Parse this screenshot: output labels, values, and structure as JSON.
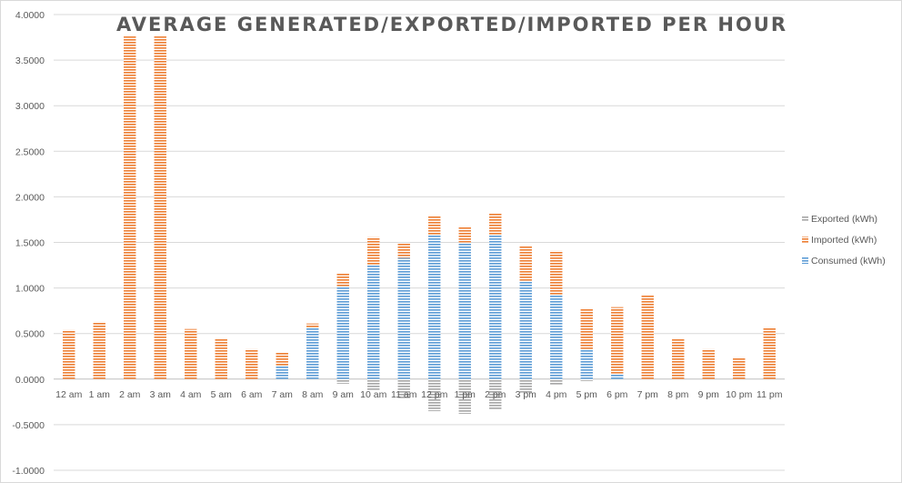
{
  "chart_data": {
    "type": "bar",
    "stacked": true,
    "title": "AVERAGE GENERATED/EXPORTED/IMPORTED PER HOUR",
    "xlabel": "",
    "ylabel": "",
    "ylim": [
      -1.0,
      4.0
    ],
    "ytick_step": 0.5,
    "ytick_decimals": 4,
    "grid": true,
    "legend_position": "right",
    "categories": [
      "12 am",
      "1 am",
      "2 am",
      "3 am",
      "4 am",
      "5 am",
      "6 am",
      "7 am",
      "8 am",
      "9 am",
      "10 am",
      "11 am",
      "12 pm",
      "1 pm",
      "2 pm",
      "3 pm",
      "4 pm",
      "5 pm",
      "6 pm",
      "7 pm",
      "8 pm",
      "9 pm",
      "10 pm",
      "11 pm"
    ],
    "series": [
      {
        "name": "Exported (kWh)",
        "color": "#a5a5a5",
        "values": [
          0,
          0,
          0,
          0,
          0,
          0,
          0,
          0,
          0,
          -0.05,
          -0.12,
          -0.22,
          -0.35,
          -0.38,
          -0.34,
          -0.15,
          -0.07,
          -0.02,
          0,
          0,
          0,
          0,
          0,
          0
        ]
      },
      {
        "name": "Imported (kWh)",
        "color": "#ed7d31",
        "values": [
          0.54,
          0.63,
          3.76,
          3.76,
          0.55,
          0.44,
          0.33,
          0.15,
          0.05,
          0.14,
          0.31,
          0.16,
          0.21,
          0.17,
          0.24,
          0.38,
          0.49,
          0.44,
          0.73,
          0.92,
          0.44,
          0.33,
          0.23,
          0.56
        ]
      },
      {
        "name": "Consumed (kWh)",
        "color": "#5b9bd5",
        "values": [
          0,
          0,
          0,
          0,
          0,
          0,
          0,
          0.14,
          0.56,
          1.02,
          1.25,
          1.33,
          1.58,
          1.5,
          1.58,
          1.08,
          0.92,
          0.33,
          0.06,
          0,
          0,
          0,
          0,
          0
        ]
      }
    ]
  }
}
